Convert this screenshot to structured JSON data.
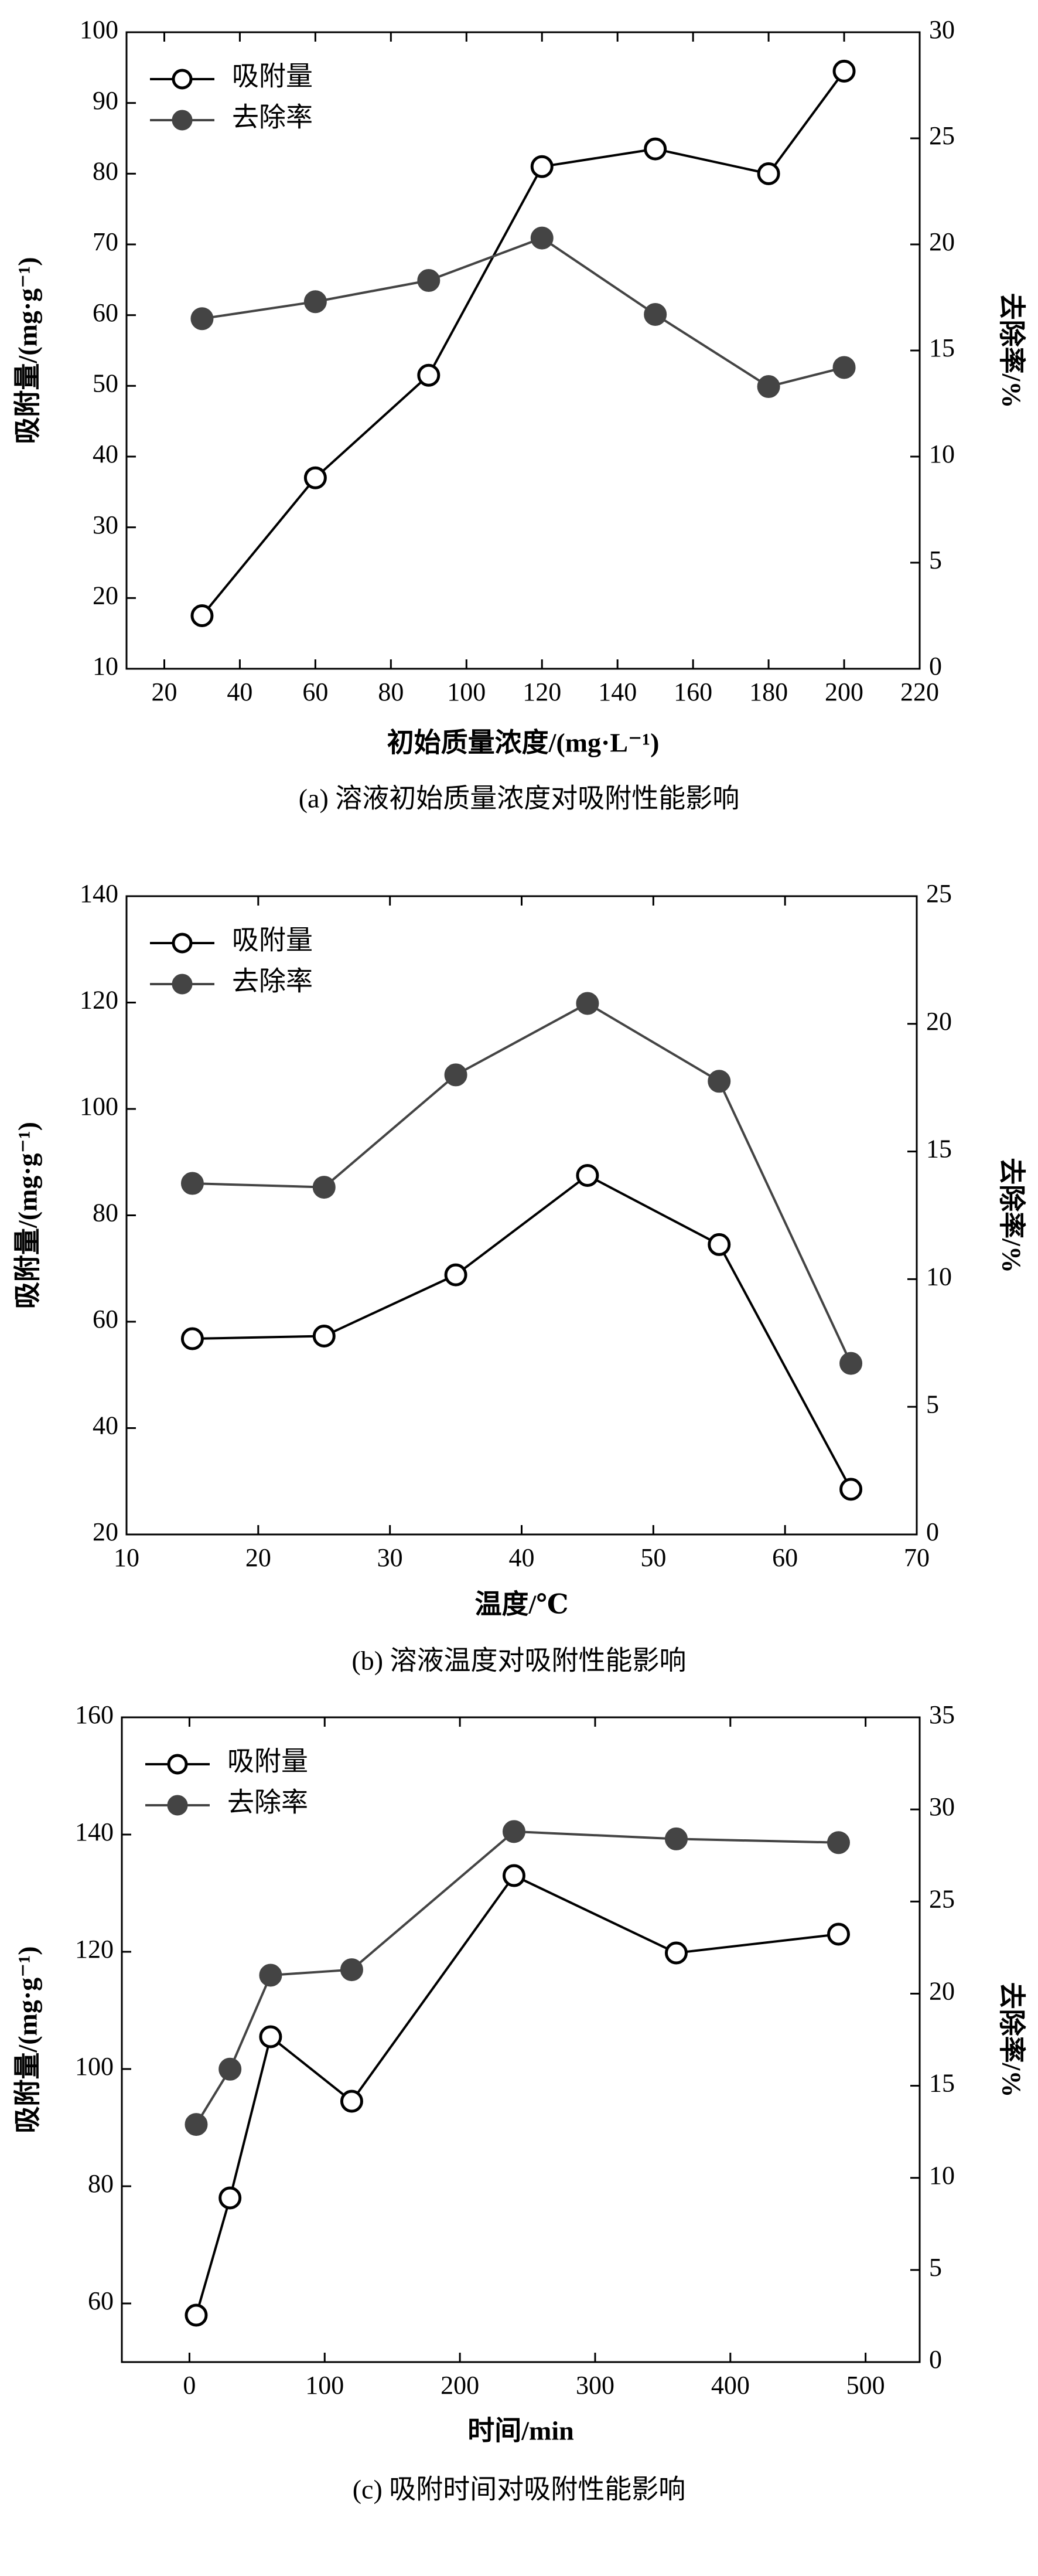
{
  "chart_data": [
    {
      "type": "line",
      "caption": "(a) 溶液初始质量浓度对吸附性能影响",
      "x_label": "初始质量浓度/(mg·L⁻¹)",
      "y_label": "吸附量/(mg·g⁻¹)",
      "y2_label": "去除率/%",
      "x": [
        30,
        60,
        90,
        120,
        150,
        180,
        200
      ],
      "xlim": [
        10,
        220
      ],
      "xticks": [
        20,
        40,
        60,
        80,
        100,
        120,
        140,
        160,
        180,
        200,
        220
      ],
      "ylim": [
        10,
        100
      ],
      "yticks": [
        10,
        20,
        30,
        40,
        50,
        60,
        70,
        80,
        90,
        100
      ],
      "y2lim": [
        0,
        30
      ],
      "y2ticks": [
        0,
        5,
        10,
        15,
        20,
        25,
        30
      ],
      "legend": "upper left",
      "series": [
        {
          "name": "吸附量",
          "color": "#000000",
          "marker": "open",
          "values": [
            17.5,
            37,
            51.5,
            81,
            83.5,
            80,
            94.5
          ]
        },
        {
          "name": "去除率",
          "color": "#444444",
          "marker": "filled",
          "axis": "y2",
          "values": [
            16.5,
            17.3,
            18.3,
            20.3,
            16.7,
            13.3,
            14.2
          ]
        }
      ]
    },
    {
      "type": "line",
      "caption": "(b) 溶液温度对吸附性能影响",
      "x_label": "温度/℃",
      "y_label": "吸附量/(mg·g⁻¹)",
      "y2_label": "去除率/%",
      "x": [
        15,
        25,
        35,
        45,
        55,
        65
      ],
      "xlim": [
        10,
        70
      ],
      "xticks": [
        10,
        20,
        30,
        40,
        50,
        60,
        70
      ],
      "ylim": [
        20,
        140
      ],
      "yticks": [
        20,
        40,
        60,
        80,
        100,
        120,
        140
      ],
      "y2lim": [
        0,
        25
      ],
      "y2ticks": [
        0,
        5,
        10,
        15,
        20,
        25
      ],
      "legend": "upper left",
      "series": [
        {
          "name": "吸附量",
          "color": "#000000",
          "marker": "open",
          "values": [
            56.8,
            57.3,
            68.8,
            87.5,
            74.5,
            28.5
          ]
        },
        {
          "name": "去除率",
          "color": "#444444",
          "marker": "filled",
          "axis": "y2",
          "values": [
            13.75,
            13.6,
            18.0,
            20.8,
            17.75,
            6.7
          ]
        }
      ]
    },
    {
      "type": "line",
      "caption": "(c) 吸附时间对吸附性能影响",
      "x_label": "时间/min",
      "y_label": "吸附量/(mg·g⁻¹)",
      "y2_label": "去除率/%",
      "x": [
        5,
        30,
        60,
        120,
        240,
        360,
        480
      ],
      "xlim": [
        -50,
        540
      ],
      "xticks": [
        0,
        100,
        200,
        300,
        400,
        500
      ],
      "ylim": [
        50,
        160
      ],
      "yticks": [
        60,
        80,
        100,
        120,
        140,
        160
      ],
      "y2lim": [
        0,
        35
      ],
      "y2ticks": [
        0,
        5,
        10,
        15,
        20,
        25,
        30,
        35
      ],
      "legend": "upper left",
      "series": [
        {
          "name": "吸附量",
          "color": "#000000",
          "marker": "open",
          "values": [
            58,
            78,
            105.5,
            94.5,
            133,
            119.8,
            123
          ]
        },
        {
          "name": "去除率",
          "color": "#444444",
          "marker": "filled",
          "axis": "y2",
          "values": [
            12.9,
            15.9,
            21.0,
            21.3,
            28.8,
            28.4,
            28.2
          ]
        }
      ]
    }
  ]
}
